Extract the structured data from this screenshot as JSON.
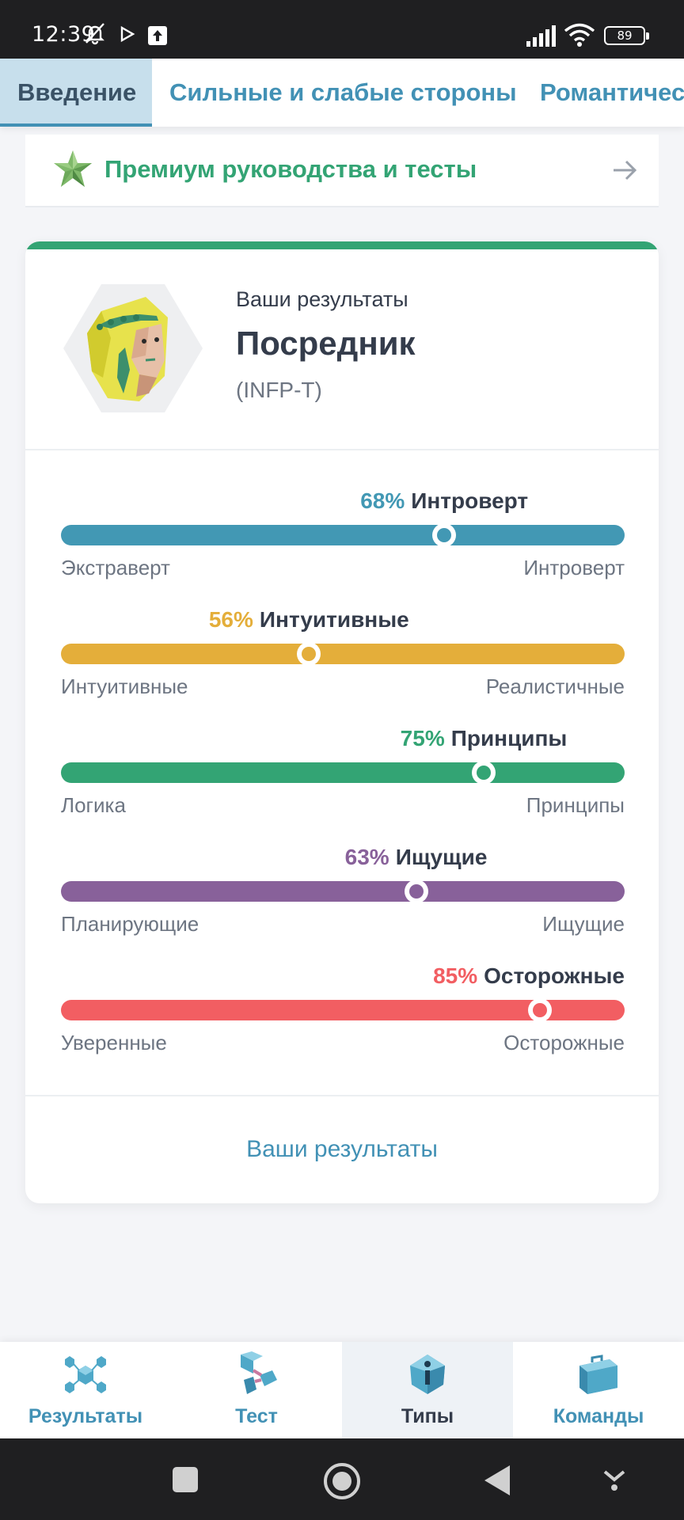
{
  "status": {
    "time": "12:39",
    "battery": "89"
  },
  "tabs": [
    {
      "label": "Введение",
      "active": true
    },
    {
      "label": "Сильные и слабые стороны",
      "active": false
    },
    {
      "label": "Романтичес",
      "active": false
    }
  ],
  "premium": {
    "label": "Премиум руководства и тесты",
    "icon": "star-badge-icon"
  },
  "result": {
    "caption": "Ваши результаты",
    "type_name": "Посредник",
    "type_code": "(INFP-T)",
    "accent": "#33a474"
  },
  "traits": [
    {
      "percent": "68%",
      "name": "Интроверт",
      "value": 0.68,
      "left": "Экстраверт",
      "right": "Интроверт",
      "color": "#4298b4"
    },
    {
      "percent": "56%",
      "name": "Интуитивные",
      "value": 0.44,
      "left": "Интуитивные",
      "right": "Реалистичные",
      "color": "#e4ae3a"
    },
    {
      "percent": "75%",
      "name": "Принципы",
      "value": 0.75,
      "left": "Логика",
      "right": "Принципы",
      "color": "#33a474"
    },
    {
      "percent": "63%",
      "name": "Ищущие",
      "value": 0.63,
      "left": "Планирующие",
      "right": "Ищущие",
      "color": "#88619a"
    },
    {
      "percent": "85%",
      "name": "Осторожные",
      "value": 0.85,
      "left": "Уверенные",
      "right": "Осторожные",
      "color": "#f25e62"
    }
  ],
  "card_link": "Ваши результаты",
  "bottom_nav": [
    {
      "label": "Результаты",
      "icon": "results-icon",
      "active": false
    },
    {
      "label": "Тест",
      "icon": "test-icon",
      "active": false
    },
    {
      "label": "Типы",
      "icon": "types-icon",
      "active": true
    },
    {
      "label": "Команды",
      "icon": "teams-icon",
      "active": false
    }
  ]
}
